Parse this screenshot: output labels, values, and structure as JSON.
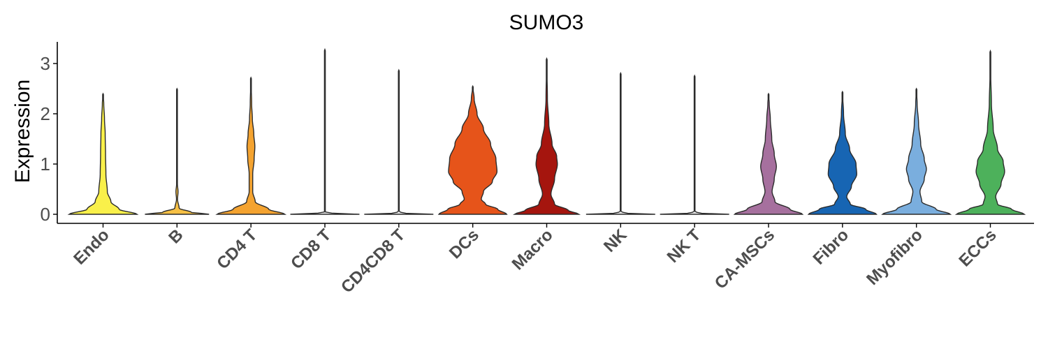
{
  "chart_data": {
    "type": "violin",
    "title": "SUMO3",
    "ylabel": "Expression",
    "xlabel": "",
    "ylim": [
      -0.15,
      3.4
    ],
    "yticks": [
      0,
      1,
      2,
      3
    ],
    "grid": false,
    "legend": "none",
    "categories": [
      "Endo",
      "B",
      "CD4 T",
      "CD8 T",
      "CD4CD8 T",
      "DCs",
      "Macro",
      "NK",
      "NK T",
      "CA-MSCs",
      "Fibro",
      "Myofibro",
      "ECCs"
    ],
    "colors": [
      "#F9F04A",
      "#F6C045",
      "#F4A330",
      "#EAEAEA",
      "#EAEAEA",
      "#E6541A",
      "#A5150E",
      "#EAEAEA",
      "#EAEAEA",
      "#A6709E",
      "#1765B3",
      "#7AAEDE",
      "#4DB15B"
    ],
    "series": [
      {
        "category": "Endo",
        "max": 2.4,
        "profile": [
          [
            0,
            0.95
          ],
          [
            0.1,
            0.45
          ],
          [
            0.25,
            0.22
          ],
          [
            0.45,
            0.12
          ],
          [
            0.8,
            0.08
          ],
          [
            1.2,
            0.07
          ],
          [
            1.6,
            0.06
          ],
          [
            1.9,
            0.04
          ],
          [
            2.2,
            0.02
          ],
          [
            2.4,
            0
          ]
        ]
      },
      {
        "category": "B",
        "max": 2.5,
        "profile": [
          [
            0,
            0.9
          ],
          [
            0.04,
            0.4
          ],
          [
            0.12,
            0.06
          ],
          [
            0.3,
            0.015
          ],
          [
            0.45,
            0.03
          ],
          [
            0.6,
            0.012
          ],
          [
            1.0,
            0.01
          ],
          [
            2.5,
            0
          ]
        ]
      },
      {
        "category": "CD4 T",
        "max": 2.72,
        "profile": [
          [
            0,
            0.95
          ],
          [
            0.1,
            0.5
          ],
          [
            0.25,
            0.12
          ],
          [
            0.45,
            0.05
          ],
          [
            0.8,
            0.05
          ],
          [
            1.1,
            0.09
          ],
          [
            1.35,
            0.11
          ],
          [
            1.6,
            0.08
          ],
          [
            1.9,
            0.04
          ],
          [
            2.2,
            0.02
          ],
          [
            2.72,
            0
          ]
        ]
      },
      {
        "category": "CD8 T",
        "max": 3.28,
        "profile": [
          [
            0,
            0.97
          ],
          [
            0.02,
            0.2
          ],
          [
            0.05,
            0.01
          ],
          [
            3.28,
            0
          ]
        ]
      },
      {
        "category": "CD4CD8 T",
        "max": 2.87,
        "profile": [
          [
            0,
            0.97
          ],
          [
            0.02,
            0.2
          ],
          [
            0.05,
            0.01
          ],
          [
            2.87,
            0
          ]
        ]
      },
      {
        "category": "DCs",
        "max": 2.55,
        "profile": [
          [
            0,
            0.95
          ],
          [
            0.1,
            0.7
          ],
          [
            0.2,
            0.36
          ],
          [
            0.3,
            0.24
          ],
          [
            0.45,
            0.3
          ],
          [
            0.65,
            0.55
          ],
          [
            0.85,
            0.68
          ],
          [
            1.1,
            0.65
          ],
          [
            1.4,
            0.5
          ],
          [
            1.7,
            0.3
          ],
          [
            2.0,
            0.12
          ],
          [
            2.3,
            0.04
          ],
          [
            2.55,
            0
          ]
        ]
      },
      {
        "category": "Macro",
        "max": 3.1,
        "profile": [
          [
            0,
            0.9
          ],
          [
            0.08,
            0.6
          ],
          [
            0.2,
            0.22
          ],
          [
            0.4,
            0.12
          ],
          [
            0.7,
            0.22
          ],
          [
            1.0,
            0.3
          ],
          [
            1.15,
            0.28
          ],
          [
            1.4,
            0.15
          ],
          [
            1.8,
            0.06
          ],
          [
            2.3,
            0.02
          ],
          [
            3.1,
            0
          ]
        ]
      },
      {
        "category": "NK",
        "max": 2.81,
        "profile": [
          [
            0,
            0.97
          ],
          [
            0.02,
            0.2
          ],
          [
            0.05,
            0.01
          ],
          [
            2.81,
            0
          ]
        ]
      },
      {
        "category": "NK T",
        "max": 2.76,
        "profile": [
          [
            0,
            0.97
          ],
          [
            0.02,
            0.2
          ],
          [
            0.05,
            0.01
          ],
          [
            2.76,
            0
          ]
        ]
      },
      {
        "category": "CA-MSCs",
        "max": 2.4,
        "profile": [
          [
            0,
            0.95
          ],
          [
            0.1,
            0.6
          ],
          [
            0.25,
            0.18
          ],
          [
            0.45,
            0.1
          ],
          [
            0.7,
            0.16
          ],
          [
            0.95,
            0.22
          ],
          [
            1.2,
            0.16
          ],
          [
            1.5,
            0.09
          ],
          [
            1.9,
            0.05
          ],
          [
            2.2,
            0.02
          ],
          [
            2.4,
            0
          ]
        ]
      },
      {
        "category": "Fibro",
        "max": 2.44,
        "profile": [
          [
            0,
            0.95
          ],
          [
            0.1,
            0.65
          ],
          [
            0.2,
            0.22
          ],
          [
            0.35,
            0.12
          ],
          [
            0.55,
            0.25
          ],
          [
            0.8,
            0.4
          ],
          [
            1.0,
            0.38
          ],
          [
            1.3,
            0.2
          ],
          [
            1.6,
            0.08
          ],
          [
            2.0,
            0.03
          ],
          [
            2.44,
            0
          ]
        ]
      },
      {
        "category": "Myofibro",
        "max": 2.5,
        "profile": [
          [
            0,
            0.95
          ],
          [
            0.1,
            0.55
          ],
          [
            0.25,
            0.15
          ],
          [
            0.45,
            0.1
          ],
          [
            0.7,
            0.22
          ],
          [
            0.9,
            0.28
          ],
          [
            1.1,
            0.22
          ],
          [
            1.4,
            0.12
          ],
          [
            1.8,
            0.06
          ],
          [
            2.2,
            0.02
          ],
          [
            2.5,
            0
          ]
        ]
      },
      {
        "category": "ECCs",
        "max": 3.25,
        "profile": [
          [
            0,
            0.95
          ],
          [
            0.1,
            0.6
          ],
          [
            0.2,
            0.2
          ],
          [
            0.35,
            0.15
          ],
          [
            0.6,
            0.3
          ],
          [
            0.85,
            0.4
          ],
          [
            1.05,
            0.36
          ],
          [
            1.3,
            0.2
          ],
          [
            1.7,
            0.08
          ],
          [
            2.2,
            0.03
          ],
          [
            2.8,
            0.01
          ],
          [
            3.25,
            0
          ]
        ]
      }
    ]
  }
}
